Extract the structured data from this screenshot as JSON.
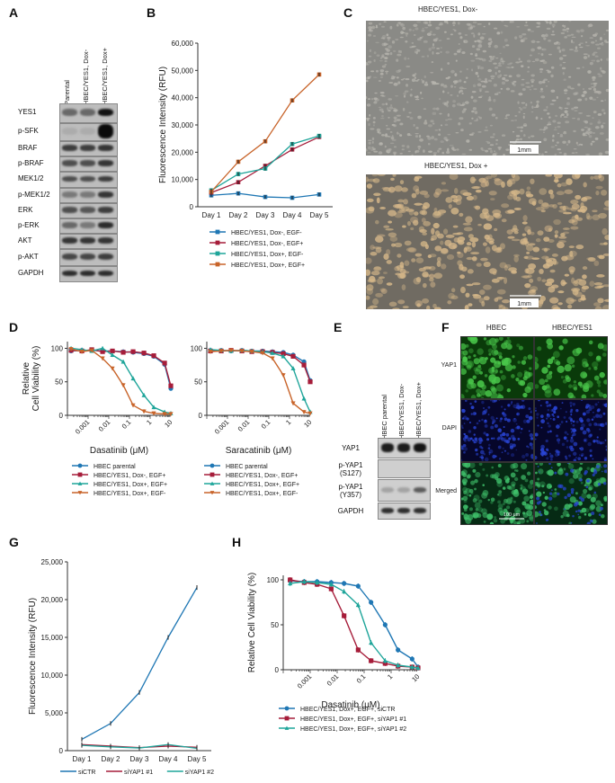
{
  "panels": {
    "A": {
      "label": "A",
      "columns": [
        "Parental",
        "HBEC/YES1, Dox-",
        "HBEC/YES1, Dox+"
      ],
      "rows": [
        "YES1",
        "p-SFK",
        "BRAF",
        "p-BRAF",
        "MEK1/2",
        "p-MEK1/2",
        "ERK",
        "p-ERK",
        "AKT",
        "p-AKT",
        "GAPDH"
      ]
    },
    "B": {
      "label": "B"
    },
    "C": {
      "label": "C",
      "top_title": "HBEC/YES1, Dox-",
      "bottom_title": "HBEC/YES1, Dox +",
      "scale": "1mm"
    },
    "D": {
      "label": "D"
    },
    "E": {
      "label": "E",
      "columns": [
        "HBEC parental",
        "HBEC/YES1, Dox-",
        "HBEC/YES1, Dox+"
      ],
      "rows": [
        "YAP1",
        "p-YAP1\n(S127)",
        "p-YAP1\n(Y357)",
        "GAPDH"
      ]
    },
    "F": {
      "label": "F",
      "columns": [
        "HBEC",
        "HBEC/YES1"
      ],
      "rows": [
        "YAP1",
        "DAPI",
        "Merged"
      ],
      "scale": "100 μm"
    },
    "G": {
      "label": "G"
    },
    "H": {
      "label": "H"
    }
  },
  "chart_data": [
    {
      "id": "B",
      "type": "line",
      "ylabel": "Fluorescence Intensity (RFU)",
      "xlabel": "",
      "categories": [
        "Day 1",
        "Day 2",
        "Day 3",
        "Day 4",
        "Day 5"
      ],
      "ylim": [
        0,
        60000
      ],
      "yticks": [
        0,
        10000,
        20000,
        30000,
        40000,
        50000,
        60000
      ],
      "ytick_labels": [
        "0",
        "10,000",
        "20,000",
        "30,000",
        "40,000",
        "50,000",
        "60,000"
      ],
      "legend_position": "bottom",
      "series": [
        {
          "name": "HBEC/YES1, Dox-, EGF-",
          "color": "#1f77b4",
          "marker": "square",
          "values": [
            4200,
            4900,
            3600,
            3300,
            4500
          ]
        },
        {
          "name": "HBEC/YES1, Dox-, EGF+",
          "color": "#a61d3a",
          "marker": "square",
          "values": [
            5200,
            9000,
            15000,
            21000,
            25600
          ]
        },
        {
          "name": "HBEC/YES1, Dox+, EGF-",
          "color": "#1fa59a",
          "marker": "square",
          "values": [
            6000,
            12000,
            14000,
            23000,
            26000
          ]
        },
        {
          "name": "HBEC/YES1, Dox+, EGF+",
          "color": "#c8642a",
          "marker": "square",
          "values": [
            5500,
            16500,
            24000,
            39000,
            48500
          ]
        }
      ]
    },
    {
      "id": "D1",
      "type": "scatter",
      "ylabel": "Relative\nCell Viability (%)",
      "xlabel": "Dasatinib (μM)",
      "xscale": "log",
      "xlim": [
        0.0001,
        10
      ],
      "xticks": [
        0.001,
        0.01,
        0.1,
        1,
        10
      ],
      "xtick_labels": [
        "0.001",
        "0.01",
        "0.1",
        "1",
        "10"
      ],
      "ylim": [
        0,
        110
      ],
      "yticks": [
        0,
        50,
        100
      ],
      "legend_position": "bottom",
      "series": [
        {
          "name": "HBEC parental",
          "color": "#1f77b4",
          "marker": "circle",
          "x": [
            0.00015,
            0.0005,
            0.0015,
            0.005,
            0.015,
            0.05,
            0.15,
            0.5,
            1.5,
            5,
            10
          ],
          "values": [
            96,
            97,
            97,
            96,
            96,
            95,
            94,
            92,
            88,
            76,
            40
          ]
        },
        {
          "name": "HBEC/YES1, Dox-, EGF+",
          "color": "#a61d3a",
          "marker": "square",
          "x": [
            0.00015,
            0.0005,
            0.0015,
            0.005,
            0.015,
            0.05,
            0.15,
            0.5,
            1.5,
            5,
            10
          ],
          "values": [
            97,
            96,
            98,
            95,
            96,
            94,
            95,
            93,
            89,
            78,
            44
          ]
        },
        {
          "name": "HBEC/YES1, Dox+, EGF+",
          "color": "#1fa59a",
          "marker": "triangle",
          "x": [
            0.00015,
            0.0005,
            0.0015,
            0.005,
            0.015,
            0.05,
            0.15,
            0.5,
            1.5,
            5,
            10
          ],
          "values": [
            100,
            98,
            96,
            100,
            90,
            80,
            55,
            30,
            12,
            5,
            3
          ]
        },
        {
          "name": "HBEC/YES1, Dox+, EGF-",
          "color": "#c8642a",
          "marker": "triangle-down",
          "x": [
            0.00015,
            0.0005,
            0.0015,
            0.005,
            0.015,
            0.05,
            0.15,
            0.5,
            1.5,
            5,
            10
          ],
          "values": [
            99,
            95,
            97,
            85,
            70,
            45,
            15,
            6,
            3,
            2,
            2
          ]
        }
      ]
    },
    {
      "id": "D2",
      "type": "scatter",
      "ylabel": "",
      "xlabel": "Saracatinib (μM)",
      "xscale": "log",
      "xlim": [
        0.0001,
        10
      ],
      "xticks": [
        0.001,
        0.01,
        0.1,
        1,
        10
      ],
      "xtick_labels": [
        "0.001",
        "0.01",
        "0.1",
        "1",
        "10"
      ],
      "ylim": [
        0,
        110
      ],
      "yticks": [
        0,
        50,
        100
      ],
      "legend_position": "bottom",
      "series": [
        {
          "name": "HBEC parental",
          "color": "#1f77b4",
          "marker": "circle",
          "x": [
            0.00015,
            0.0005,
            0.0015,
            0.005,
            0.015,
            0.05,
            0.15,
            0.5,
            1.5,
            5,
            10
          ],
          "values": [
            97,
            97,
            96,
            97,
            96,
            96,
            95,
            94,
            90,
            80,
            52
          ]
        },
        {
          "name": "HBEC/YES1, Dox-, EGF+",
          "color": "#a61d3a",
          "marker": "square",
          "x": [
            0.00015,
            0.0005,
            0.0015,
            0.005,
            0.015,
            0.05,
            0.15,
            0.5,
            1.5,
            5,
            10
          ],
          "values": [
            96,
            96,
            97,
            96,
            95,
            95,
            94,
            92,
            88,
            75,
            50
          ]
        },
        {
          "name": "HBEC/YES1, Dox+, EGF+",
          "color": "#1fa59a",
          "marker": "triangle",
          "x": [
            0.00015,
            0.0005,
            0.0015,
            0.005,
            0.015,
            0.05,
            0.15,
            0.5,
            1.5,
            5,
            10
          ],
          "values": [
            98,
            97,
            96,
            97,
            96,
            95,
            93,
            88,
            70,
            25,
            5
          ]
        },
        {
          "name": "HBEC/YES1, Dox+, EGF-",
          "color": "#c8642a",
          "marker": "triangle-down",
          "x": [
            0.00015,
            0.0005,
            0.0015,
            0.005,
            0.015,
            0.05,
            0.15,
            0.5,
            1.5,
            5,
            10
          ],
          "values": [
            95,
            96,
            97,
            96,
            95,
            93,
            85,
            60,
            18,
            5,
            3
          ]
        }
      ]
    },
    {
      "id": "G",
      "type": "line",
      "ylabel": "Fluorescence Intensity (RFU)",
      "xlabel": "",
      "categories": [
        "Day 1",
        "Day 2",
        "Day 3",
        "Day 4",
        "Day 5"
      ],
      "ylim": [
        0,
        25000
      ],
      "yticks": [
        0,
        5000,
        10000,
        15000,
        20000,
        25000
      ],
      "ytick_labels": [
        "0",
        "5,000",
        "10,000",
        "15,000",
        "20,000",
        "25,000"
      ],
      "legend_position": "bottom",
      "series": [
        {
          "name": "siCTR",
          "color": "#1f77b4",
          "values": [
            1500,
            3600,
            7700,
            15000,
            21600
          ]
        },
        {
          "name": "siYAP1 #1",
          "color": "#a61d3a",
          "values": [
            800,
            600,
            400,
            600,
            450
          ]
        },
        {
          "name": "siYAP1 #2",
          "color": "#1fa59a",
          "values": [
            700,
            500,
            350,
            800,
            300
          ]
        }
      ]
    },
    {
      "id": "H",
      "type": "scatter",
      "ylabel": "Relative Cell Viability (%)",
      "xlabel": "Dasatinib (μM)",
      "xscale": "log",
      "xlim": [
        0.0001,
        10
      ],
      "xticks": [
        0.001,
        0.01,
        0.1,
        1,
        10
      ],
      "xtick_labels": [
        "0.001",
        "0.01",
        "0.1",
        "1",
        "10"
      ],
      "ylim": [
        0,
        105
      ],
      "yticks": [
        0,
        50,
        100
      ],
      "legend_position": "bottom",
      "series": [
        {
          "name": "HBEC/YES1, Dox+, EGF+, siCTR",
          "color": "#1f77b4",
          "marker": "circle",
          "x": [
            0.00018,
            0.0006,
            0.0018,
            0.006,
            0.018,
            0.06,
            0.18,
            0.6,
            1.8,
            6,
            10
          ],
          "values": [
            99,
            98,
            98,
            97,
            96,
            93,
            75,
            50,
            22,
            12,
            3
          ]
        },
        {
          "name": "HBEC/YES1, Dox+, EGF+, siYAP1 #1",
          "color": "#a61d3a",
          "marker": "square",
          "x": [
            0.00018,
            0.0006,
            0.0018,
            0.006,
            0.018,
            0.06,
            0.18,
            0.6,
            1.8,
            6,
            10
          ],
          "values": [
            100,
            97,
            95,
            90,
            60,
            22,
            10,
            7,
            4,
            3,
            2
          ]
        },
        {
          "name": "HBEC/YES1, Dox+, EGF+, siYAP1 #2",
          "color": "#1fa59a",
          "marker": "triangle",
          "x": [
            0.00018,
            0.0006,
            0.0018,
            0.006,
            0.018,
            0.06,
            0.18,
            0.6,
            1.8,
            6,
            10
          ],
          "values": [
            96,
            98,
            97,
            95,
            87,
            72,
            30,
            10,
            5,
            3,
            2
          ]
        }
      ]
    }
  ]
}
